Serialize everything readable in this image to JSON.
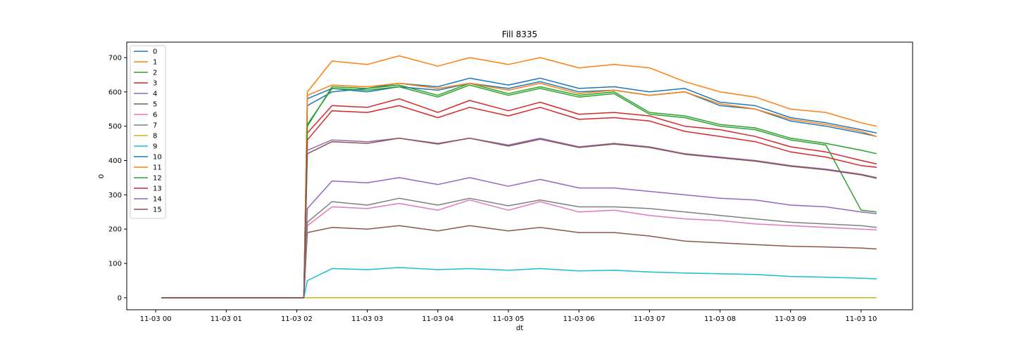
{
  "chart_data": {
    "type": "line",
    "title": "Fill 8335",
    "xlabel": "dt",
    "ylabel": "0",
    "x_ticks": [
      "11-03 00",
      "11-03 01",
      "11-03 02",
      "11-03 03",
      "11-03 04",
      "11-03 05",
      "11-03 06",
      "11-03 07",
      "11-03 08",
      "11-03 09",
      "11-03 10"
    ],
    "x_range_hours": [
      -0.41,
      10.73
    ],
    "ylim": [
      -35,
      745
    ],
    "y_ticks": [
      0,
      100,
      200,
      300,
      400,
      500,
      600,
      700
    ],
    "grid": false,
    "legend": "top-left",
    "x_hours": [
      0.08,
      2.1,
      2.15,
      2.5,
      3.0,
      3.45,
      4.0,
      4.45,
      5.0,
      5.45,
      6.0,
      6.5,
      7.0,
      7.5,
      8.0,
      8.5,
      9.0,
      9.5,
      10.0,
      10.22
    ],
    "series": [
      {
        "name": "0",
        "color": "#1f77b4",
        "values": [
          0,
          0,
          560,
          600,
          610,
          625,
          615,
          640,
          620,
          640,
          610,
          615,
          600,
          610,
          570,
          560,
          525,
          510,
          490,
          480
        ]
      },
      {
        "name": "1",
        "color": "#ff7f0e",
        "values": [
          0,
          0,
          600,
          690,
          680,
          705,
          675,
          700,
          680,
          700,
          670,
          680,
          670,
          630,
          600,
          585,
          550,
          540,
          510,
          500
        ]
      },
      {
        "name": "2",
        "color": "#2ca02c",
        "values": [
          0,
          0,
          500,
          615,
          610,
          620,
          590,
          625,
          595,
          615,
          590,
          600,
          540,
          530,
          505,
          495,
          465,
          450,
          430,
          420
        ]
      },
      {
        "name": "3",
        "color": "#d62728",
        "values": [
          0,
          0,
          480,
          560,
          555,
          580,
          540,
          575,
          545,
          570,
          535,
          540,
          530,
          500,
          490,
          470,
          440,
          425,
          400,
          390
        ]
      },
      {
        "name": "4",
        "color": "#9467bd",
        "values": [
          0,
          0,
          260,
          340,
          335,
          350,
          330,
          350,
          325,
          345,
          320,
          320,
          310,
          300,
          290,
          285,
          270,
          265,
          250,
          245
        ]
      },
      {
        "name": "5",
        "color": "#8c564b",
        "values": [
          0,
          0,
          190,
          205,
          200,
          210,
          195,
          210,
          195,
          205,
          190,
          190,
          180,
          165,
          160,
          155,
          150,
          148,
          145,
          142
        ]
      },
      {
        "name": "6",
        "color": "#e377c2",
        "values": [
          0,
          0,
          210,
          265,
          260,
          275,
          255,
          285,
          255,
          280,
          250,
          255,
          240,
          230,
          225,
          215,
          210,
          205,
          200,
          198
        ]
      },
      {
        "name": "7",
        "color": "#7f7f7f",
        "values": [
          0,
          0,
          220,
          280,
          270,
          290,
          270,
          290,
          268,
          285,
          265,
          265,
          260,
          250,
          240,
          230,
          220,
          215,
          210,
          205
        ]
      },
      {
        "name": "8",
        "color": "#bcbd22",
        "values": [
          0,
          0,
          0,
          0,
          0,
          0,
          0,
          0,
          0,
          0,
          0,
          0,
          0,
          0,
          0,
          0,
          0,
          0,
          0,
          0
        ]
      },
      {
        "name": "9",
        "color": "#17becf",
        "values": [
          0,
          0,
          50,
          85,
          82,
          88,
          82,
          85,
          80,
          85,
          78,
          80,
          75,
          72,
          70,
          68,
          62,
          60,
          57,
          55
        ]
      },
      {
        "name": "10",
        "color": "#1f77b4",
        "values": [
          0,
          0,
          580,
          610,
          600,
          615,
          605,
          625,
          610,
          630,
          600,
          605,
          590,
          600,
          560,
          550,
          515,
          500,
          480,
          470
        ]
      },
      {
        "name": "11",
        "color": "#ff7f0e",
        "values": [
          0,
          0,
          590,
          620,
          615,
          625,
          610,
          625,
          605,
          625,
          595,
          605,
          590,
          600,
          565,
          550,
          520,
          505,
          485,
          470
        ]
      },
      {
        "name": "12",
        "color": "#2ca02c",
        "values": [
          0,
          0,
          505,
          610,
          605,
          615,
          585,
          620,
          590,
          610,
          585,
          595,
          535,
          525,
          500,
          490,
          460,
          445,
          255,
          250
        ]
      },
      {
        "name": "13",
        "color": "#d62728",
        "values": [
          0,
          0,
          460,
          545,
          540,
          560,
          525,
          555,
          530,
          555,
          520,
          525,
          515,
          485,
          470,
          455,
          425,
          410,
          385,
          380
        ]
      },
      {
        "name": "14",
        "color": "#9467bd",
        "values": [
          0,
          0,
          430,
          460,
          455,
          465,
          450,
          465,
          445,
          465,
          440,
          450,
          440,
          420,
          410,
          400,
          385,
          375,
          360,
          350
        ]
      },
      {
        "name": "15",
        "color": "#8c564b",
        "values": [
          0,
          0,
          420,
          455,
          450,
          465,
          448,
          465,
          442,
          462,
          438,
          448,
          438,
          418,
          408,
          398,
          383,
          373,
          358,
          348
        ]
      }
    ]
  }
}
